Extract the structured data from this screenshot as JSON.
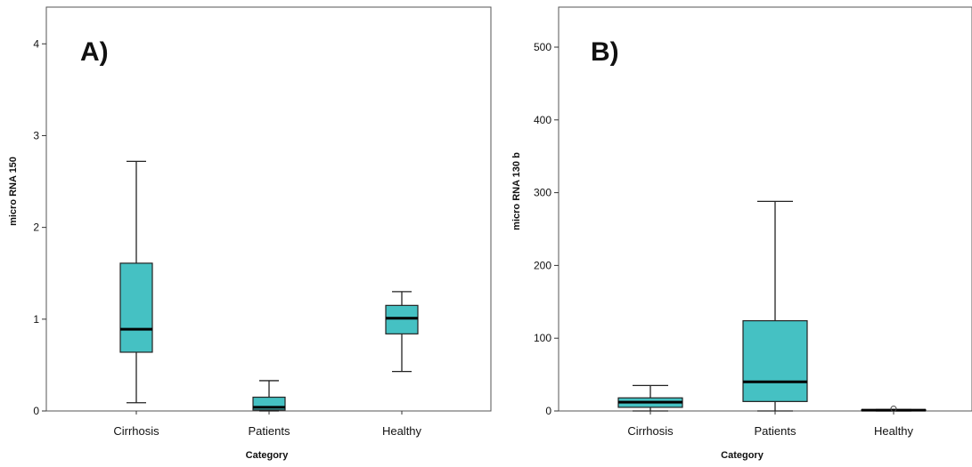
{
  "chart_data": [
    {
      "type": "box",
      "panel_label": "A)",
      "xlabel": "Category",
      "ylabel": "micro RNA 150",
      "ylim": [
        0,
        4.4
      ],
      "yticks": [
        0,
        1,
        2,
        3,
        4
      ],
      "box_color": "#45C1C3",
      "categories": [
        "Cirrhosis",
        "Patients",
        "Healthy"
      ],
      "boxes": [
        {
          "category": "Cirrhosis",
          "min": 0.09,
          "q1": 0.64,
          "median": 0.89,
          "q3": 1.61,
          "max": 2.72
        },
        {
          "category": "Patients",
          "min": 0.0,
          "q1": 0.01,
          "median": 0.04,
          "q3": 0.15,
          "max": 0.33
        },
        {
          "category": "Healthy",
          "min": 0.43,
          "q1": 0.84,
          "median": 1.01,
          "q3": 1.15,
          "max": 1.3
        }
      ]
    },
    {
      "type": "box",
      "panel_label": "B)",
      "xlabel": "Category",
      "ylabel": "micro RNA 130 b",
      "ylim": [
        0,
        555
      ],
      "yticks": [
        0,
        100,
        200,
        300,
        400,
        500
      ],
      "box_color": "#45C1C3",
      "categories": [
        "Cirrhosis",
        "Patients",
        "Healthy"
      ],
      "boxes": [
        {
          "category": "Cirrhosis",
          "min": 0,
          "q1": 5,
          "median": 12,
          "q3": 18,
          "max": 35
        },
        {
          "category": "Patients",
          "min": 0,
          "q1": 13,
          "median": 40,
          "q3": 124,
          "max": 288
        },
        {
          "category": "Healthy",
          "min": 0,
          "q1": 0.5,
          "median": 1,
          "q3": 1.5,
          "max": 2,
          "outliers": [
            3
          ]
        }
      ]
    }
  ]
}
